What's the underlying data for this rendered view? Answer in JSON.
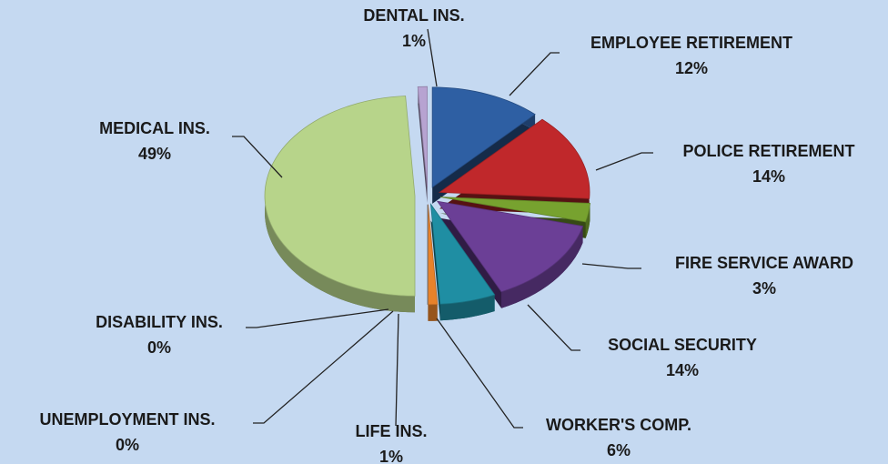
{
  "chart_data": {
    "type": "pie",
    "categories": [
      "EMPLOYEE RETIREMENT",
      "POLICE RETIREMENT",
      "FIRE SERVICE AWARD",
      "SOCIAL SECURITY",
      "WORKER'S COMP.",
      "LIFE INS.",
      "UNEMPLOYMENT INS.",
      "DISABILITY INS.",
      "MEDICAL INS.",
      "DENTAL INS."
    ],
    "values": [
      12,
      14,
      3,
      14,
      6,
      1,
      0,
      0,
      49,
      1
    ],
    "value_labels": [
      "12%",
      "14%",
      "3%",
      "14%",
      "6%",
      "1%",
      "0%",
      "0%",
      "49%",
      "1%"
    ],
    "colors": [
      "#2e5fa3",
      "#c0282b",
      "#77a22f",
      "#6b3f96",
      "#1f8ea3",
      "#e8822a",
      "#7f9fc8",
      "#8a8a8a",
      "#b7d48a",
      "#b7a3d1"
    ]
  }
}
